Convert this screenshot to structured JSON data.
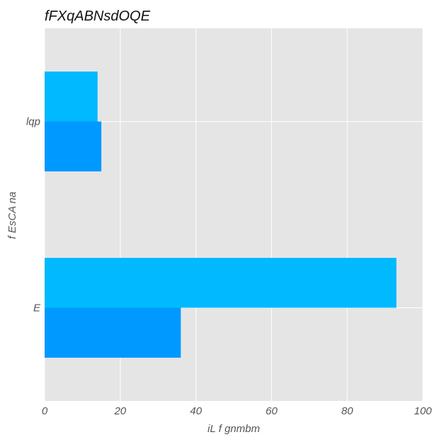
{
  "chart_data": {
    "type": "bar",
    "orientation": "horizontal",
    "title": "fFXqABNsdOQE",
    "xlabel": "iL f gnmbm",
    "ylabel": "f EsCA na",
    "categories": [
      "E",
      "lqp"
    ],
    "series": [
      {
        "values": [
          36,
          15
        ],
        "color": "#0099ff"
      },
      {
        "values": [
          93,
          14
        ],
        "color": "#00b9ff"
      }
    ],
    "xlim": [
      0,
      100
    ],
    "xticks": [
      0,
      20,
      40,
      60,
      80,
      100
    ],
    "grid": true,
    "legend": "none"
  },
  "colors": {
    "plot_background": "#e5e5e5",
    "grid": "#ffffff"
  }
}
